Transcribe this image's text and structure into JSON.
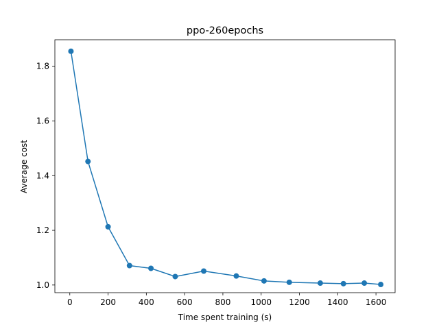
{
  "chart_data": {
    "type": "line",
    "title": "ppo-260epochs",
    "xlabel": "Time spent training (s)",
    "ylabel": "Average cost",
    "xlim": [
      -78,
      1700
    ],
    "ylim": [
      0.972,
      1.897
    ],
    "xticks": [
      0,
      200,
      400,
      600,
      800,
      1000,
      1200,
      1400,
      1600
    ],
    "yticks": [
      1.0,
      1.2,
      1.4,
      1.6,
      1.8
    ],
    "grid": false,
    "series": [
      {
        "color": "#1f77b4",
        "marker": "circle",
        "x": [
          6,
          95,
          200,
          312,
          424,
          551,
          700,
          870,
          1015,
          1147,
          1309,
          1430,
          1539,
          1625
        ],
        "y": [
          1.855,
          1.452,
          1.213,
          1.071,
          1.061,
          1.031,
          1.051,
          1.033,
          1.015,
          1.01,
          1.007,
          1.005,
          1.007,
          1.002
        ]
      }
    ]
  }
}
